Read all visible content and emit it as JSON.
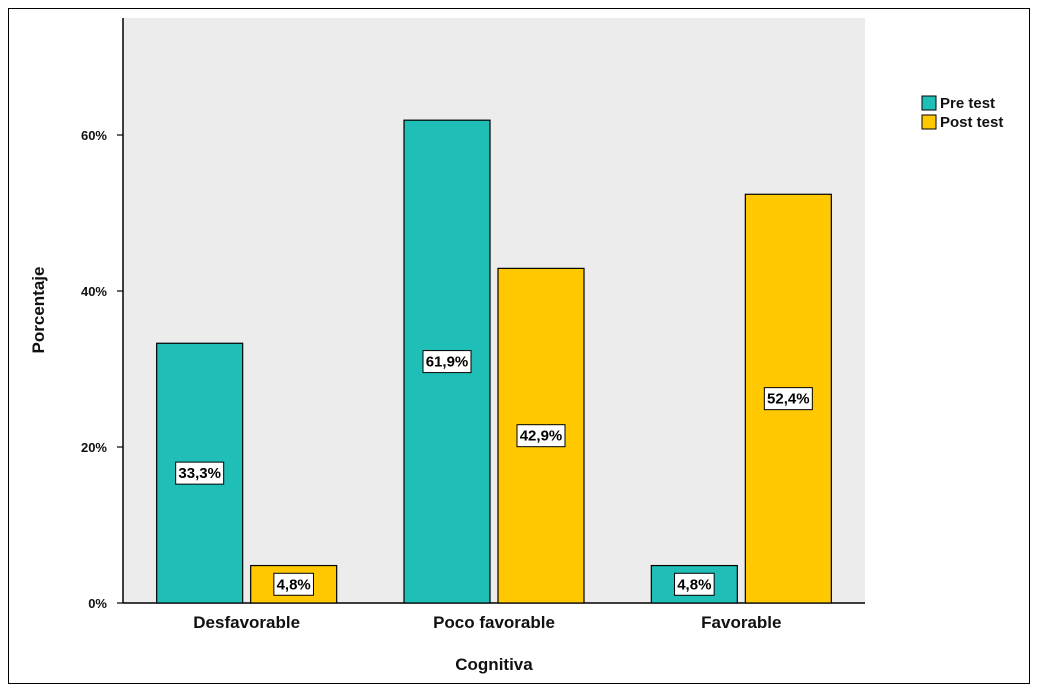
{
  "chart_data": {
    "type": "bar",
    "title": "",
    "xlabel": "Cognitiva",
    "ylabel": "Porcentaje",
    "categories": [
      "Desfavorable",
      "Poco favorable",
      "Favorable"
    ],
    "series": [
      {
        "name": "Pre test",
        "values": [
          33.3,
          61.9,
          4.8
        ],
        "labels": [
          "33,3%",
          "61,9%",
          "4,8%"
        ],
        "color": "#1fbfb8"
      },
      {
        "name": "Post test",
        "values": [
          4.8,
          42.9,
          52.4
        ],
        "labels": [
          "4,8%",
          "42,9%",
          "52,4%"
        ],
        "color": "#ffc800"
      }
    ],
    "ylim": [
      0,
      75
    ],
    "yticks": [
      0,
      20,
      40,
      60
    ],
    "ytick_labels": [
      "0%",
      "20%",
      "40%",
      "60%"
    ],
    "legend_position": "top-right",
    "grid": false,
    "plot_background": "#ececec"
  }
}
